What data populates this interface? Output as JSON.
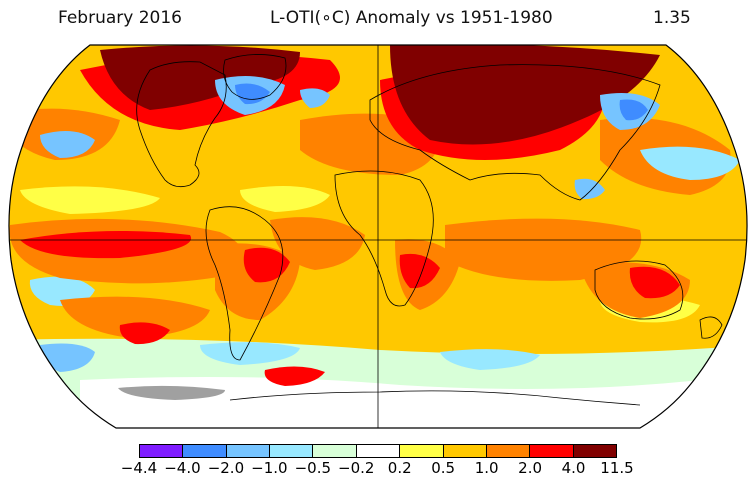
{
  "header": {
    "date": "February 2016",
    "title": "L-OTI(∘C) Anomaly vs 1951-1980",
    "global_value": "1.35"
  },
  "map": {
    "projection": "Robinson",
    "colors": {
      "c1": "#7f1cff",
      "c2": "#3f8cff",
      "c3": "#76c4ff",
      "c4": "#98e8ff",
      "c5": "#d8ffd8",
      "c6": "#ffffff",
      "c7": "#ffff46",
      "c8": "#ffc800",
      "c9": "#ff8200",
      "c10": "#ff0000",
      "c11": "#800000",
      "land_outline": "#000000",
      "missing": "#a0a0a0"
    }
  },
  "legend": {
    "labels": [
      "−4.4",
      "−4.0",
      "−2.0",
      "−1.0",
      "−0.5",
      "−0.2",
      "0.2",
      "0.5",
      "1.0",
      "2.0",
      "4.0",
      "11.5"
    ],
    "colors": [
      "#7f1cff",
      "#3f8cff",
      "#76c4ff",
      "#98e8ff",
      "#d8ffd8",
      "#ffffff",
      "#ffff46",
      "#ffc800",
      "#ff8200",
      "#ff0000",
      "#800000"
    ]
  }
}
